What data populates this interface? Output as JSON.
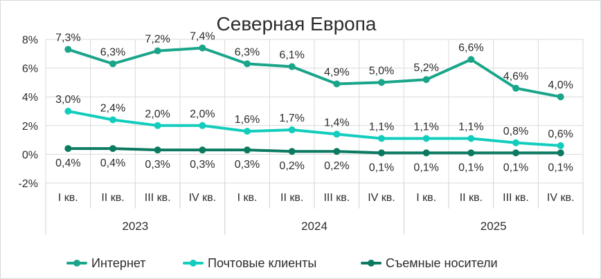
{
  "title": "Северная Европа",
  "chart_data": {
    "type": "line",
    "title": "Северная Европа",
    "xlabel": "",
    "ylabel": "",
    "ylim": [
      -2,
      8
    ],
    "yticks": [
      "8%",
      "6%",
      "4%",
      "2%",
      "0%",
      "-2%"
    ],
    "ytick_values": [
      8,
      6,
      4,
      2,
      0,
      -2
    ],
    "categories": [
      "I кв.",
      "II кв.",
      "III кв.",
      "IV кв.",
      "I кв.",
      "II кв.",
      "III кв.",
      "IV кв.",
      "I кв.",
      "II кв.",
      "III кв.",
      "IV кв."
    ],
    "groups": [
      {
        "label": "2023",
        "count": 4
      },
      {
        "label": "2024",
        "count": 4
      },
      {
        "label": "2025",
        "count": 4
      }
    ],
    "grid": true,
    "legend": "bottom",
    "series": [
      {
        "name": "Интернет",
        "color": "#1aa58a",
        "values": [
          7.3,
          6.3,
          7.2,
          7.4,
          6.3,
          6.1,
          4.9,
          5.0,
          5.2,
          6.6,
          4.6,
          4.0
        ],
        "labels": [
          "7,3%",
          "6,3%",
          "7,2%",
          "7,4%",
          "6,3%",
          "6,1%",
          "4,9%",
          "5,0%",
          "5,2%",
          "6,6%",
          "4,6%",
          "4,0%"
        ],
        "label_position": "above"
      },
      {
        "name": "Почтовые клиенты",
        "color": "#12cdbd",
        "values": [
          3.0,
          2.4,
          2.0,
          2.0,
          1.6,
          1.7,
          1.4,
          1.1,
          1.1,
          1.1,
          0.8,
          0.6
        ],
        "labels": [
          "3,0%",
          "2,4%",
          "2,0%",
          "2,0%",
          "1,6%",
          "1,7%",
          "1,4%",
          "1,1%",
          "1,1%",
          "1,1%",
          "0,8%",
          "0,6%"
        ],
        "label_position": "above"
      },
      {
        "name": "Съемные носители",
        "color": "#0b7a60",
        "values": [
          0.4,
          0.4,
          0.3,
          0.3,
          0.3,
          0.2,
          0.2,
          0.1,
          0.1,
          0.1,
          0.1,
          0.1
        ],
        "labels": [
          "0,4%",
          "0,4%",
          "0,3%",
          "0,3%",
          "0,3%",
          "0,2%",
          "0,2%",
          "0,1%",
          "0,1%",
          "0,1%",
          "0,1%",
          "0,1%"
        ],
        "label_position": "below"
      }
    ]
  }
}
